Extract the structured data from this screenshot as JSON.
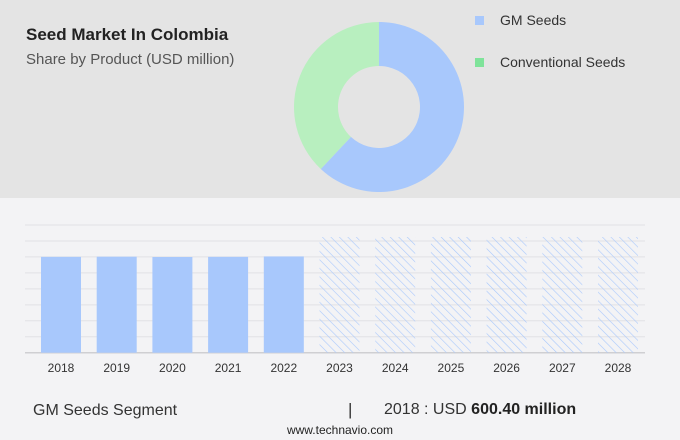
{
  "title": "Seed Market In Colombia",
  "subtitle": "Share by Product (USD million)",
  "chart_data": [
    {
      "type": "pie",
      "donut": true,
      "labels": [
        "GM Seeds",
        "Conventional Seeds"
      ],
      "values": [
        62,
        38
      ],
      "colors": [
        "#a8c8fc",
        "#b8efbf"
      ],
      "legend_colors": [
        "#a8c8fc",
        "#7fe39a"
      ],
      "legend": "right"
    },
    {
      "type": "bar",
      "categories": [
        "2018",
        "2019",
        "2020",
        "2021",
        "2022",
        "2023",
        "2024",
        "2025",
        "2026",
        "2027",
        "2028"
      ],
      "values": [
        600.4,
        601.5,
        599.5,
        600.5,
        603,
        null,
        null,
        null,
        null,
        null,
        null
      ],
      "forecast_categories": [
        "2023",
        "2024",
        "2025",
        "2026",
        "2027",
        "2028"
      ],
      "ylim": [
        0,
        800
      ],
      "grid": true,
      "color": "#a8c8fc",
      "forecast_style": "hatched"
    }
  ],
  "footer": {
    "segment": "GM Seeds Segment",
    "separator": "|",
    "year_label": "2018 : USD",
    "value": "600.40 million",
    "url": "www.technavio.com"
  }
}
